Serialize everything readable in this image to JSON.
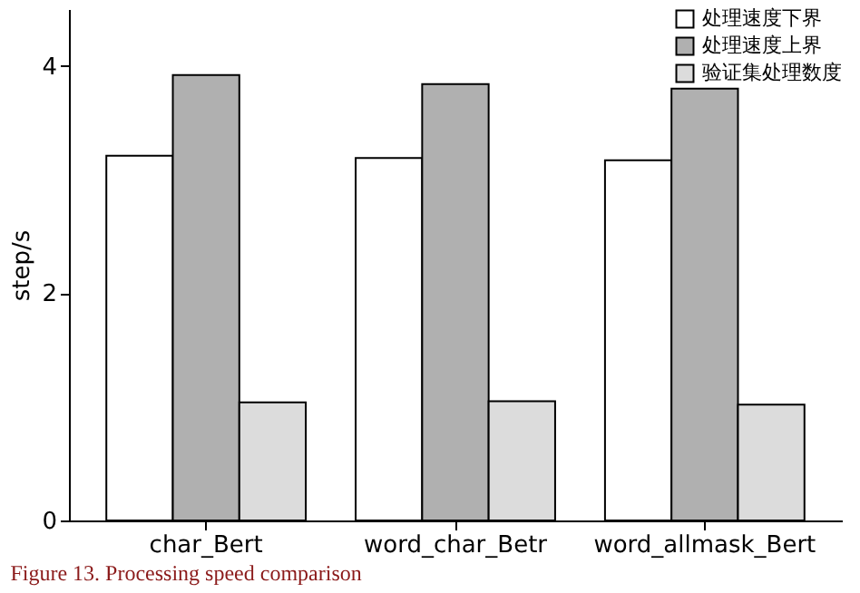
{
  "chart_data": {
    "type": "bar",
    "ylabel": "step/s",
    "categories": [
      "char_Bert",
      "word_char_Betr",
      "word_allmask_Bert"
    ],
    "series": [
      {
        "name": "处理速度下界",
        "color": "#ffffff",
        "values": [
          3.21,
          3.19,
          3.17
        ]
      },
      {
        "name": "处理速度上界",
        "color": "#b0b0b0",
        "values": [
          3.92,
          3.84,
          3.8
        ]
      },
      {
        "name": "验证集处理数度",
        "color": "#dcdcdc",
        "values": [
          1.04,
          1.05,
          1.02
        ]
      }
    ],
    "ylim": [
      0,
      4.5
    ],
    "yticks": [
      0,
      2,
      4
    ],
    "grid": false,
    "legend": "top right",
    "annotations": [
      "Figure 13. Processing speed comparison"
    ]
  }
}
